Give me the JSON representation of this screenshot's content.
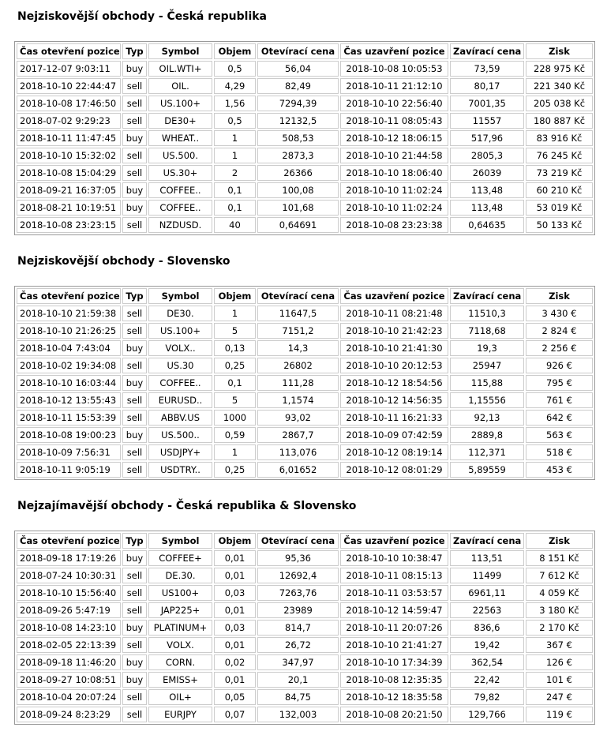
{
  "sections": [
    {
      "title": "Nejziskovější obchody - Česká republika",
      "headers": [
        "Čas otevření pozice",
        "Typ",
        "Symbol",
        "Objem",
        "Otevírací cena",
        "Čas uzavření pozice",
        "Zavírací cena",
        "Zisk"
      ],
      "rows": [
        [
          "2017-12-07 9:03:11",
          "buy",
          "OIL.WTI+",
          "0,5",
          "56,04",
          "2018-10-08 10:05:53",
          "73,59",
          "228 975 Kč"
        ],
        [
          "2018-10-10 22:44:47",
          "sell",
          "OIL.",
          "4,29",
          "82,49",
          "2018-10-11 21:12:10",
          "80,17",
          "221 340 Kč"
        ],
        [
          "2018-10-08 17:46:50",
          "sell",
          "US.100+",
          "1,56",
          "7294,39",
          "2018-10-10 22:56:40",
          "7001,35",
          "205 038 Kč"
        ],
        [
          "2018-07-02 9:29:23",
          "sell",
          "DE30+",
          "0,5",
          "12132,5",
          "2018-10-11 08:05:43",
          "11557",
          "180 887 Kč"
        ],
        [
          "2018-10-11 11:47:45",
          "buy",
          "WHEAT..",
          "1",
          "508,53",
          "2018-10-12 18:06:15",
          "517,96",
          "83 916 Kč"
        ],
        [
          "2018-10-10 15:32:02",
          "sell",
          "US.500.",
          "1",
          "2873,3",
          "2018-10-10 21:44:58",
          "2805,3",
          "76 245 Kč"
        ],
        [
          "2018-10-08 15:04:29",
          "sell",
          "US.30+",
          "2",
          "26366",
          "2018-10-10 18:06:40",
          "26039",
          "73 219 Kč"
        ],
        [
          "2018-09-21 16:37:05",
          "buy",
          "COFFEE..",
          "0,1",
          "100,08",
          "2018-10-10 11:02:24",
          "113,48",
          "60 210 Kč"
        ],
        [
          "2018-08-21 10:19:51",
          "buy",
          "COFFEE..",
          "0,1",
          "101,68",
          "2018-10-10 11:02:24",
          "113,48",
          "53 019 Kč"
        ],
        [
          "2018-10-08 23:23:15",
          "sell",
          "NZDUSD.",
          "40",
          "0,64691",
          "2018-10-08 23:23:38",
          "0,64635",
          "50 133 Kč"
        ]
      ]
    },
    {
      "title": "Nejziskovější obchody - Slovensko",
      "headers": [
        "Čas otevření pozice",
        "Typ",
        "Symbol",
        "Objem",
        "Otevírací cena",
        "Čas uzavření pozice",
        "Zavírací cena",
        "Zisk"
      ],
      "rows": [
        [
          "2018-10-10 21:59:38",
          "sell",
          "DE30.",
          "1",
          "11647,5",
          "2018-10-11 08:21:48",
          "11510,3",
          "3 430 €"
        ],
        [
          "2018-10-10 21:26:25",
          "sell",
          "US.100+",
          "5",
          "7151,2",
          "2018-10-10 21:42:23",
          "7118,68",
          "2 824 €"
        ],
        [
          "2018-10-04 7:43:04",
          "buy",
          "VOLX..",
          "0,13",
          "14,3",
          "2018-10-10 21:41:30",
          "19,3",
          "2 256 €"
        ],
        [
          "2018-10-02 19:34:08",
          "sell",
          "US.30",
          "0,25",
          "26802",
          "2018-10-10 20:12:53",
          "25947",
          "926 €"
        ],
        [
          "2018-10-10 16:03:44",
          "buy",
          "COFFEE..",
          "0,1",
          "111,28",
          "2018-10-12 18:54:56",
          "115,88",
          "795 €"
        ],
        [
          "2018-10-12 13:55:43",
          "sell",
          "EURUSD..",
          "5",
          "1,1574",
          "2018-10-12 14:56:35",
          "1,15556",
          "761 €"
        ],
        [
          "2018-10-11 15:53:39",
          "sell",
          "ABBV.US",
          "1000",
          "93,02",
          "2018-10-11 16:21:33",
          "92,13",
          "642 €"
        ],
        [
          "2018-10-08 19:00:23",
          "buy",
          "US.500..",
          "0,59",
          "2867,7",
          "2018-10-09 07:42:59",
          "2889,8",
          "563 €"
        ],
        [
          "2018-10-09 7:56:31",
          "sell",
          "USDJPY+",
          "1",
          "113,076",
          "2018-10-12 08:19:14",
          "112,371",
          "518 €"
        ],
        [
          "2018-10-11 9:05:19",
          "sell",
          "USDTRY..",
          "0,25",
          "6,01652",
          "2018-10-12 08:01:29",
          "5,89559",
          "453 €"
        ]
      ]
    },
    {
      "title": "Nejzajímavější obchody - Česká republika & Slovensko",
      "headers": [
        "Čas otevření pozice",
        "Typ",
        "Symbol",
        "Objem",
        "Otevírací cena",
        "Čas uzavření pozice",
        "Zavírací cena",
        "Zisk"
      ],
      "rows": [
        [
          "2018-09-18 17:19:26",
          "buy",
          "COFFEE+",
          "0,01",
          "95,36",
          "2018-10-10 10:38:47",
          "113,51",
          "8 151 Kč"
        ],
        [
          "2018-07-24 10:30:31",
          "sell",
          "DE.30.",
          "0,01",
          "12692,4",
          "2018-10-11 08:15:13",
          "11499",
          "7 612 Kč"
        ],
        [
          "2018-10-10 15:56:40",
          "sell",
          "US100+",
          "0,03",
          "7263,76",
          "2018-10-11 03:53:57",
          "6961,11",
          "4 059 Kč"
        ],
        [
          "2018-09-26 5:47:19",
          "sell",
          "JAP225+",
          "0,01",
          "23989",
          "2018-10-12 14:59:47",
          "22563",
          "3 180 Kč"
        ],
        [
          "2018-10-08 14:23:10",
          "buy",
          "PLATINUM+",
          "0,03",
          "814,7",
          "2018-10-11 20:07:26",
          "836,6",
          "2 170 Kč"
        ],
        [
          "2018-02-05 22:13:39",
          "sell",
          "VOLX.",
          "0,01",
          "26,72",
          "2018-10-10 21:41:27",
          "19,42",
          "367 €"
        ],
        [
          "2018-09-18 11:46:20",
          "buy",
          "CORN.",
          "0,02",
          "347,97",
          "2018-10-10 17:34:39",
          "362,54",
          "126 €"
        ],
        [
          "2018-09-27 10:08:51",
          "buy",
          "EMISS+",
          "0,01",
          "20,1",
          "2018-10-08 12:35:35",
          "22,42",
          "101 €"
        ],
        [
          "2018-10-04 20:07:24",
          "sell",
          "OIL+",
          "0,05",
          "84,75",
          "2018-10-12 18:35:58",
          "79,82",
          "247 €"
        ],
        [
          "2018-09-24 8:23:29",
          "sell",
          "EURJPY",
          "0,07",
          "132,003",
          "2018-10-08 20:21:50",
          "129,766",
          "119 €"
        ]
      ]
    }
  ]
}
